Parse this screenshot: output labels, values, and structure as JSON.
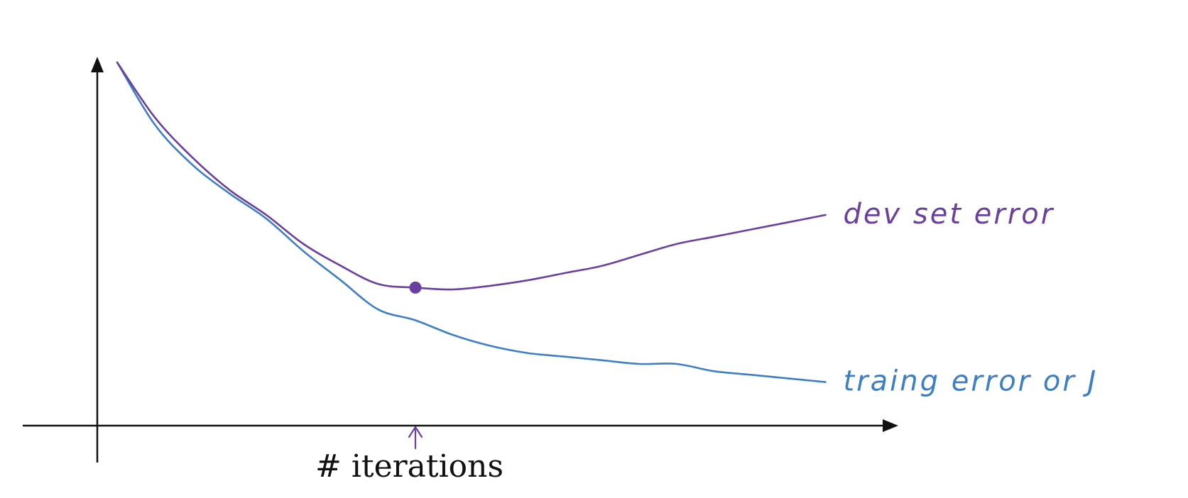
{
  "chart_data": {
    "type": "line",
    "title": "",
    "xlabel": "# iterations",
    "ylabel": "",
    "xlim": [
      0,
      100
    ],
    "ylim": [
      0,
      100
    ],
    "grid": false,
    "legend": "inline labels at right end of each curve",
    "series": [
      {
        "name": "dev set error",
        "color": "#6a3fa0",
        "x": [
          0,
          5,
          10,
          15,
          20,
          25,
          30,
          35,
          40,
          45,
          50,
          55,
          60,
          65,
          70,
          75,
          80,
          85,
          90,
          95
        ],
        "y": [
          100,
          85,
          74,
          65,
          58,
          50,
          44,
          39,
          38,
          37.5,
          38.5,
          40,
          42,
          44,
          47,
          50,
          52,
          54,
          56,
          58
        ]
      },
      {
        "name": "traing error or J",
        "color": "#3d7fc6",
        "x": [
          0,
          5,
          10,
          15,
          20,
          25,
          30,
          35,
          40,
          45,
          50,
          55,
          60,
          65,
          70,
          75,
          80,
          85,
          90,
          95
        ],
        "y": [
          100,
          83,
          72,
          64,
          57,
          48,
          40,
          32,
          29,
          25,
          22,
          20,
          19,
          18,
          17,
          17,
          15,
          14,
          13,
          12
        ]
      }
    ],
    "annotations": [
      {
        "type": "marker",
        "label": "",
        "x": 40,
        "y": 38,
        "target": "dev set error minimum"
      },
      {
        "type": "arrow",
        "label": "",
        "x": 40,
        "target": "x-axis at dev set minimum"
      }
    ]
  }
}
